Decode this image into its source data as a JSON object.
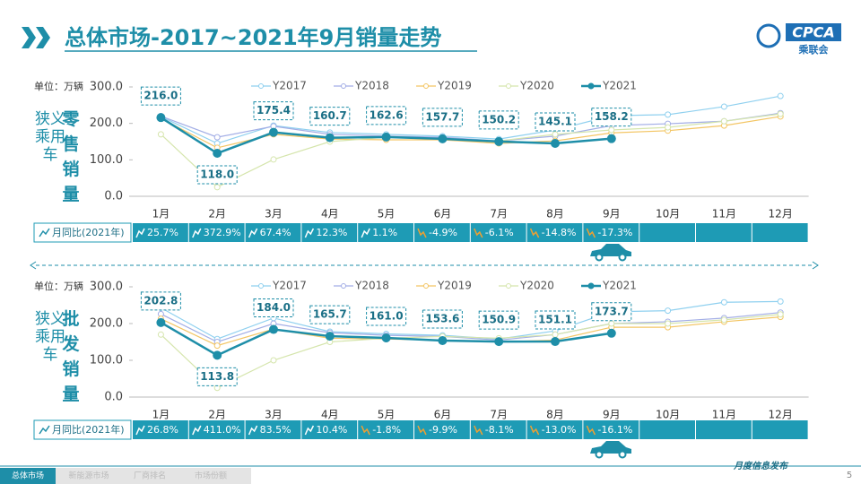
{
  "header": {
    "title": "总体市场-2017~2021年9月销量走势",
    "logo": "CPCA",
    "logo_sub": "乘联会"
  },
  "chart_data": [
    {
      "type": "line",
      "unit": "单位：万辆",
      "row_label": "狭义乘用车",
      "title": "零售销量",
      "legend": "top",
      "grid": false,
      "categories": [
        "1月",
        "2月",
        "3月",
        "4月",
        "5月",
        "6月",
        "7月",
        "8月",
        "9月",
        "10月",
        "11月",
        "12月"
      ],
      "ylim": [
        0,
        300
      ],
      "yticks": [
        {
          "value": 0,
          "label": "0.0"
        },
        {
          "value": 100,
          "label": "100.0"
        },
        {
          "value": 200,
          "label": "200.0"
        },
        {
          "value": 300,
          "label": "300.0"
        }
      ],
      "series": [
        {
          "name": "Y2017",
          "color": "#8fd0ef",
          "values": [
            219,
            145,
            194,
            175,
            170,
            165,
            157,
            182,
            221,
            224,
            246,
            275
          ]
        },
        {
          "name": "Y2018",
          "color": "#a3aee6",
          "values": [
            220,
            162,
            192,
            170,
            165,
            162,
            152,
            165,
            194,
            199,
            206,
            228
          ]
        },
        {
          "name": "Y2019",
          "color": "#f3c563",
          "values": [
            214,
            133,
            170,
            157,
            155,
            155,
            145,
            152,
            174,
            180,
            194,
            219
          ]
        },
        {
          "name": "Y2020",
          "color": "#d5e5ac",
          "values": [
            170,
            25,
            101,
            150,
            162,
            157,
            152,
            170,
            182,
            189,
            206,
            226
          ]
        },
        {
          "name": "Y2021",
          "color": "#1e8ea8",
          "values": [
            216.0,
            118.0,
            175.4,
            160.7,
            162.6,
            157.7,
            150.2,
            145.1,
            158.2,
            null,
            null,
            null
          ],
          "value_labels": [
            "216.0",
            "118.0",
            "175.4",
            "160.7",
            "162.6",
            "157.7",
            "150.2",
            "145.1",
            "158.2",
            null,
            null,
            null
          ]
        }
      ],
      "yoy": {
        "label": "月同比(2021年)",
        "values": [
          "25.7%",
          "372.9%",
          "67.4%",
          "12.3%",
          "1.1%",
          "-4.9%",
          "-6.1%",
          "-14.8%",
          "-17.3%",
          null,
          null,
          null
        ]
      }
    },
    {
      "type": "line",
      "unit": "单位：万辆",
      "row_label": "狭义乘用车",
      "title": "批发销量",
      "legend": "top",
      "grid": false,
      "categories": [
        "1月",
        "2月",
        "3月",
        "4月",
        "5月",
        "6月",
        "7月",
        "8月",
        "9月",
        "10月",
        "11月",
        "12月"
      ],
      "ylim": [
        0,
        300
      ],
      "yticks": [
        {
          "value": 0,
          "label": "0.0"
        },
        {
          "value": 100,
          "label": "100.0"
        },
        {
          "value": 200,
          "label": "200.0"
        },
        {
          "value": 300,
          "label": "300.0"
        }
      ],
      "series": [
        {
          "name": "Y2017",
          "color": "#8fd0ef",
          "values": [
            243,
            158,
            215,
            178,
            172,
            168,
            158,
            180,
            232,
            235,
            258,
            260
          ]
        },
        {
          "name": "Y2018",
          "color": "#a3aee6",
          "values": [
            226,
            150,
            200,
            175,
            168,
            165,
            155,
            170,
            200,
            205,
            215,
            230
          ]
        },
        {
          "name": "Y2019",
          "color": "#f3c563",
          "values": [
            213,
            140,
            185,
            160,
            158,
            155,
            150,
            155,
            190,
            190,
            205,
            218
          ]
        },
        {
          "name": "Y2020",
          "color": "#d5e5ac",
          "values": [
            170,
            25,
            100,
            150,
            160,
            165,
            160,
            170,
            200,
            200,
            210,
            225
          ]
        },
        {
          "name": "Y2021",
          "color": "#1e8ea8",
          "values": [
            202.8,
            113.8,
            184.0,
            165.7,
            161.0,
            153.6,
            150.9,
            151.1,
            173.7,
            null,
            null,
            null
          ],
          "value_labels": [
            "202.8",
            "113.8",
            "184.0",
            "165.7",
            "161.0",
            "153.6",
            "150.9",
            "151.1",
            "173.7",
            null,
            null,
            null
          ]
        }
      ],
      "yoy": {
        "label": "月同比(2021年)",
        "values": [
          "26.8%",
          "411.0%",
          "83.5%",
          "10.4%",
          "-1.8%",
          "-9.9%",
          "-8.1%",
          "-13.0%",
          "-16.1%",
          null,
          null,
          null
        ]
      }
    }
  ],
  "footer": {
    "tabs": [
      "总体市场",
      "新能源市场",
      "厂商排名",
      "市场份额"
    ],
    "note": "月度信息发布",
    "page": "5"
  }
}
